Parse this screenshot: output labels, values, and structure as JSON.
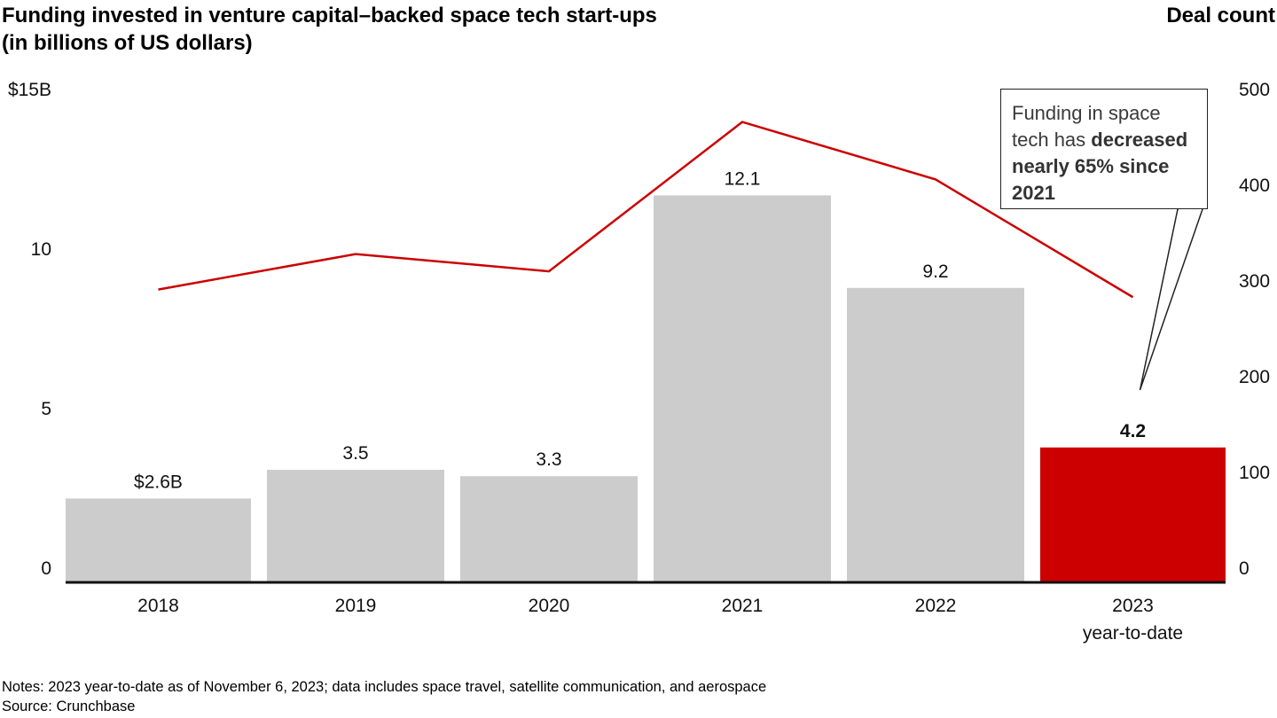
{
  "chart_data": {
    "type": "bar",
    "title": "Funding invested in venture capital–backed space tech start-ups",
    "subtitle": "(in billions of US dollars)",
    "right_axis_title": "Deal count",
    "categories": [
      "2018",
      "2019",
      "2020",
      "2021",
      "2022",
      "2023"
    ],
    "category_sublabels": [
      "",
      "",
      "",
      "",
      "",
      "year-to-date"
    ],
    "series": [
      {
        "name": "Funding (billions USD)",
        "type": "bar",
        "axis": "left",
        "values": [
          2.6,
          3.5,
          3.3,
          12.1,
          9.2,
          4.2
        ],
        "data_labels": [
          "$2.6B",
          "3.5",
          "3.3",
          "12.1",
          "9.2",
          "4.2"
        ],
        "colors": [
          "#cccccc",
          "#cccccc",
          "#cccccc",
          "#cccccc",
          "#cccccc",
          "#cc0000"
        ],
        "bold_labels": [
          false,
          false,
          false,
          false,
          false,
          true
        ]
      },
      {
        "name": "Deal count",
        "type": "line",
        "axis": "right",
        "values": [
          305,
          342,
          324,
          480,
          420,
          297
        ],
        "color": "#cc0000"
      }
    ],
    "left_axis": {
      "ylim": [
        0,
        15
      ],
      "ticks": [
        0,
        5,
        10,
        15
      ],
      "tick_labels": [
        "0",
        "5",
        "10",
        "$15B"
      ]
    },
    "right_axis": {
      "ylim": [
        0,
        500
      ],
      "ticks": [
        0,
        100,
        200,
        300,
        400,
        500
      ],
      "tick_labels": [
        "0",
        "100",
        "200",
        "300",
        "400",
        "500"
      ]
    },
    "grid": false,
    "annotation": {
      "text_parts": [
        {
          "text": "Funding in space tech has ",
          "bold": false
        },
        {
          "text": "decreased nearly 65% since 2021",
          "bold": true
        }
      ],
      "points_to": "2023"
    }
  },
  "footer": {
    "notes": "Notes: 2023 year-to-date as of November 6, 2023; data includes space travel, satellite communication, and aerospace",
    "source": "Source: Crunchbase"
  }
}
